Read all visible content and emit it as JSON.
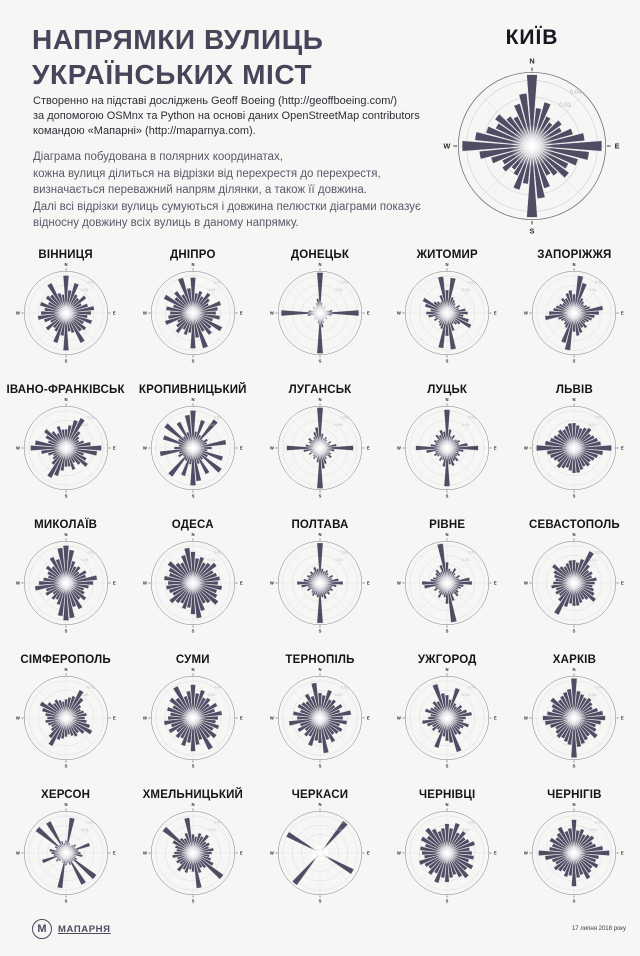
{
  "colors": {
    "background": "#f6f6f5",
    "petal": "#4e4d63",
    "heading": "#474559",
    "intro_text": "#2e2e38",
    "method_text": "#585869",
    "grid_ring": "#cfcfd4",
    "outer_ring": "#73737d",
    "tick_label": "#b8b8bd",
    "direction_label": "#26262e"
  },
  "header": {
    "title_line1": "НАПРЯМКИ ВУЛИЦЬ",
    "title_line2": "УКРАЇНСЬКИХ МІСТ",
    "intro_lines": [
      "Створенно на підставі досліджень Geoff Boeing (http://geoffboeing.com/)",
      "за допомогою OSMnx та Python на основі даних OpenStreetMap contributors",
      "командою «Мапарні» (http://maparnya.com)."
    ],
    "method_lines": [
      "Діаграма побудована в полярних координатах,",
      "кожна вулиця ділиться на відрізки від перехрестя до перехрестя,",
      "визначається переважний напрям ділянки, а також її довжина.",
      "Далі всі відрізки вулиць сумуються і довжина пелюстки діаграми показує",
      "відносну довжину всіх вулиць в даному напрямку."
    ]
  },
  "chart_data": {
    "type": "polar-rose",
    "bin_width_deg": 10,
    "bins_start": "N, clockwise",
    "direction_labels": [
      "N",
      "E",
      "S",
      "W"
    ],
    "values_unit": "relative street length, fraction of axis max",
    "featured": {
      "name": "КИЇВ",
      "r_ticks": [
        "0.04",
        "0.03"
      ],
      "values": [
        0.97,
        0.52,
        0.62,
        0.45,
        0.4,
        0.5,
        0.45,
        0.58,
        0.72,
        0.95,
        0.78,
        0.65,
        0.55,
        0.62,
        0.5,
        0.45,
        0.6,
        0.72,
        0.97,
        0.52,
        0.62,
        0.45,
        0.4,
        0.5,
        0.45,
        0.58,
        0.72,
        0.95,
        0.78,
        0.65,
        0.55,
        0.62,
        0.5,
        0.45,
        0.6,
        0.72
      ]
    },
    "cities": [
      {
        "name": "ВІННИЦЯ",
        "r_ticks": [
          "0.04",
          "0.03"
        ],
        "values": [
          0.9,
          0.55,
          0.75,
          0.5,
          0.45,
          0.6,
          0.42,
          0.55,
          0.68,
          0.6,
          0.52,
          0.65,
          0.48,
          0.6,
          0.55,
          0.8,
          0.5,
          0.45,
          0.9,
          0.55,
          0.75,
          0.5,
          0.45,
          0.6,
          0.42,
          0.55,
          0.68,
          0.6,
          0.52,
          0.65,
          0.48,
          0.6,
          0.55,
          0.8,
          0.5,
          0.45
        ]
      },
      {
        "name": "ДНІПРО",
        "r_ticks": [
          "0.04",
          "0.03"
        ],
        "values": [
          0.85,
          0.48,
          0.55,
          0.45,
          0.6,
          0.5,
          0.42,
          0.7,
          0.6,
          0.55,
          0.65,
          0.5,
          0.78,
          0.55,
          0.65,
          0.5,
          0.88,
          0.6,
          0.85,
          0.48,
          0.55,
          0.45,
          0.6,
          0.5,
          0.42,
          0.7,
          0.6,
          0.55,
          0.65,
          0.5,
          0.78,
          0.55,
          0.65,
          0.5,
          0.88,
          0.6
        ]
      },
      {
        "name": "ДОНЕЦЬК",
        "r_ticks": [
          "0.06",
          "0.04"
        ],
        "values": [
          0.97,
          0.25,
          0.18,
          0.15,
          0.2,
          0.15,
          0.12,
          0.18,
          0.3,
          0.93,
          0.28,
          0.18,
          0.15,
          0.22,
          0.15,
          0.18,
          0.25,
          0.35,
          0.97,
          0.25,
          0.18,
          0.15,
          0.2,
          0.15,
          0.12,
          0.18,
          0.3,
          0.93,
          0.28,
          0.18,
          0.15,
          0.22,
          0.15,
          0.18,
          0.25,
          0.35
        ]
      },
      {
        "name": "ЖИТОМИР",
        "r_ticks": [
          "0.05",
          "0.04"
        ],
        "values": [
          0.55,
          0.85,
          0.4,
          0.35,
          0.3,
          0.25,
          0.35,
          0.3,
          0.45,
          0.5,
          0.4,
          0.55,
          0.65,
          0.4,
          0.35,
          0.3,
          0.45,
          0.88,
          0.55,
          0.85,
          0.4,
          0.35,
          0.3,
          0.25,
          0.35,
          0.3,
          0.45,
          0.5,
          0.4,
          0.55,
          0.65,
          0.4,
          0.35,
          0.3,
          0.45,
          0.88
        ]
      },
      {
        "name": "ЗАПОРІЖЖЯ",
        "r_ticks": [
          "0.06",
          "0.04"
        ],
        "values": [
          0.45,
          0.9,
          0.75,
          0.4,
          0.35,
          0.3,
          0.35,
          0.4,
          0.7,
          0.6,
          0.5,
          0.45,
          0.4,
          0.35,
          0.45,
          0.4,
          0.5,
          0.55,
          0.45,
          0.9,
          0.75,
          0.4,
          0.35,
          0.3,
          0.35,
          0.4,
          0.7,
          0.6,
          0.5,
          0.45,
          0.4,
          0.35,
          0.45,
          0.4,
          0.5,
          0.55
        ]
      },
      {
        "name": "ІВАНО-ФРАНКІВСЬК",
        "r_ticks": [
          "0.05",
          "0.04"
        ],
        "values": [
          0.45,
          0.55,
          0.7,
          0.8,
          0.5,
          0.4,
          0.35,
          0.45,
          0.6,
          0.85,
          0.75,
          0.45,
          0.55,
          0.65,
          0.5,
          0.4,
          0.55,
          0.45,
          0.45,
          0.55,
          0.7,
          0.8,
          0.5,
          0.4,
          0.35,
          0.45,
          0.6,
          0.85,
          0.75,
          0.45,
          0.55,
          0.65,
          0.5,
          0.4,
          0.55,
          0.45
        ]
      },
      {
        "name": "КРОПИВНИЦЬКИЙ",
        "r_ticks": [
          "0.05",
          "0.04"
        ],
        "values": [
          0.9,
          0.4,
          0.7,
          0.35,
          0.85,
          0.3,
          0.4,
          0.35,
          0.8,
          0.45,
          0.35,
          0.75,
          0.4,
          0.85,
          0.35,
          0.7,
          0.4,
          0.8,
          0.9,
          0.4,
          0.7,
          0.35,
          0.85,
          0.3,
          0.4,
          0.35,
          0.8,
          0.45,
          0.35,
          0.75,
          0.4,
          0.85,
          0.35,
          0.7,
          0.4,
          0.8
        ]
      },
      {
        "name": "ЛУГАНСЬК",
        "r_ticks": [
          "0.06",
          "0.04"
        ],
        "values": [
          0.97,
          0.35,
          0.25,
          0.3,
          0.25,
          0.2,
          0.3,
          0.25,
          0.4,
          0.8,
          0.35,
          0.25,
          0.3,
          0.35,
          0.25,
          0.3,
          0.4,
          0.5,
          0.97,
          0.35,
          0.25,
          0.3,
          0.25,
          0.2,
          0.3,
          0.25,
          0.4,
          0.8,
          0.35,
          0.25,
          0.3,
          0.35,
          0.25,
          0.3,
          0.4,
          0.5
        ]
      },
      {
        "name": "ЛУЦЬК",
        "r_ticks": [
          "0.05",
          "0.04"
        ],
        "values": [
          0.92,
          0.45,
          0.3,
          0.35,
          0.25,
          0.3,
          0.35,
          0.3,
          0.5,
          0.75,
          0.4,
          0.3,
          0.35,
          0.3,
          0.4,
          0.35,
          0.45,
          0.4,
          0.92,
          0.45,
          0.3,
          0.35,
          0.25,
          0.3,
          0.35,
          0.3,
          0.5,
          0.75,
          0.4,
          0.3,
          0.35,
          0.3,
          0.4,
          0.35,
          0.45,
          0.4
        ]
      },
      {
        "name": "ЛЬВІВ",
        "r_ticks": [
          "0.03",
          "0.02"
        ],
        "values": [
          0.6,
          0.55,
          0.5,
          0.55,
          0.6,
          0.5,
          0.55,
          0.6,
          0.65,
          0.9,
          0.7,
          0.6,
          0.55,
          0.5,
          0.55,
          0.5,
          0.55,
          0.6,
          0.6,
          0.55,
          0.5,
          0.55,
          0.6,
          0.5,
          0.55,
          0.6,
          0.65,
          0.9,
          0.7,
          0.6,
          0.55,
          0.5,
          0.55,
          0.5,
          0.55,
          0.6
        ]
      },
      {
        "name": "МИКОЛАЇВ",
        "r_ticks": [
          "0.04",
          "0.03"
        ],
        "values": [
          0.9,
          0.8,
          0.55,
          0.45,
          0.5,
          0.4,
          0.55,
          0.5,
          0.75,
          0.65,
          0.55,
          0.45,
          0.5,
          0.6,
          0.5,
          0.7,
          0.6,
          0.85,
          0.9,
          0.8,
          0.55,
          0.45,
          0.5,
          0.4,
          0.55,
          0.5,
          0.75,
          0.65,
          0.55,
          0.45,
          0.5,
          0.6,
          0.5,
          0.7,
          0.6,
          0.85
        ]
      },
      {
        "name": "ОДЕСА",
        "r_ticks": [
          "0.03",
          "0.02"
        ],
        "values": [
          0.75,
          0.6,
          0.65,
          0.55,
          0.6,
          0.7,
          0.55,
          0.6,
          0.65,
          0.6,
          0.7,
          0.6,
          0.65,
          0.75,
          0.6,
          0.55,
          0.7,
          0.85,
          0.75,
          0.6,
          0.65,
          0.55,
          0.6,
          0.7,
          0.55,
          0.6,
          0.65,
          0.6,
          0.7,
          0.6,
          0.65,
          0.75,
          0.6,
          0.55,
          0.7,
          0.85
        ]
      },
      {
        "name": "ПОЛТАВА",
        "r_ticks": [
          "0.06",
          "0.04"
        ],
        "values": [
          0.96,
          0.35,
          0.3,
          0.35,
          0.3,
          0.25,
          0.35,
          0.3,
          0.45,
          0.55,
          0.4,
          0.3,
          0.35,
          0.3,
          0.35,
          0.3,
          0.4,
          0.35,
          0.96,
          0.35,
          0.3,
          0.35,
          0.3,
          0.25,
          0.35,
          0.3,
          0.45,
          0.55,
          0.4,
          0.3,
          0.35,
          0.3,
          0.35,
          0.3,
          0.4,
          0.35
        ]
      },
      {
        "name": "РІВНЕ",
        "r_ticks": [
          "0.07",
          "0.05"
        ],
        "values": [
          0.5,
          0.35,
          0.3,
          0.4,
          0.3,
          0.25,
          0.35,
          0.3,
          0.55,
          0.6,
          0.4,
          0.35,
          0.3,
          0.35,
          0.4,
          0.3,
          0.45,
          0.95,
          0.5,
          0.35,
          0.3,
          0.4,
          0.3,
          0.25,
          0.35,
          0.3,
          0.55,
          0.6,
          0.4,
          0.35,
          0.3,
          0.35,
          0.4,
          0.3,
          0.45,
          0.95
        ]
      },
      {
        "name": "СЕВАСТОПОЛЬ",
        "r_ticks": [
          "0.03",
          "0.02"
        ],
        "values": [
          0.55,
          0.5,
          0.6,
          0.85,
          0.55,
          0.45,
          0.5,
          0.45,
          0.55,
          0.5,
          0.45,
          0.5,
          0.55,
          0.65,
          0.5,
          0.45,
          0.5,
          0.55,
          0.55,
          0.5,
          0.6,
          0.85,
          0.55,
          0.45,
          0.5,
          0.45,
          0.55,
          0.5,
          0.45,
          0.5,
          0.55,
          0.65,
          0.5,
          0.45,
          0.5,
          0.55
        ]
      },
      {
        "name": "СІМФЕРОПОЛЬ",
        "r_ticks": [
          "0.03",
          "0.02"
        ],
        "values": [
          0.45,
          0.5,
          0.55,
          0.75,
          0.6,
          0.45,
          0.4,
          0.45,
          0.5,
          0.45,
          0.5,
          0.6,
          0.7,
          0.55,
          0.45,
          0.5,
          0.45,
          0.4,
          0.45,
          0.5,
          0.55,
          0.75,
          0.6,
          0.45,
          0.4,
          0.45,
          0.5,
          0.45,
          0.5,
          0.6,
          0.7,
          0.55,
          0.45,
          0.5,
          0.45,
          0.4
        ]
      },
      {
        "name": "СУМИ",
        "r_ticks": [
          "0.04",
          "0.03"
        ],
        "values": [
          0.8,
          0.6,
          0.7,
          0.55,
          0.6,
          0.5,
          0.65,
          0.55,
          0.7,
          0.6,
          0.55,
          0.65,
          0.55,
          0.7,
          0.6,
          0.85,
          0.55,
          0.65,
          0.8,
          0.6,
          0.7,
          0.55,
          0.6,
          0.5,
          0.65,
          0.55,
          0.7,
          0.6,
          0.55,
          0.65,
          0.55,
          0.7,
          0.6,
          0.85,
          0.55,
          0.65
        ]
      },
      {
        "name": "ТЕРНОПІЛЬ",
        "r_ticks": [
          "0.03",
          "0.02"
        ],
        "values": [
          0.6,
          0.55,
          0.7,
          0.5,
          0.55,
          0.45,
          0.6,
          0.5,
          0.75,
          0.55,
          0.65,
          0.5,
          0.6,
          0.55,
          0.5,
          0.65,
          0.55,
          0.85,
          0.6,
          0.55,
          0.7,
          0.5,
          0.55,
          0.45,
          0.6,
          0.5,
          0.75,
          0.55,
          0.65,
          0.5,
          0.6,
          0.55,
          0.5,
          0.65,
          0.55,
          0.85
        ]
      },
      {
        "name": "УЖГОРОД",
        "r_ticks": [
          "0.04",
          "0.03"
        ],
        "values": [
          0.55,
          0.45,
          0.75,
          0.4,
          0.35,
          0.45,
          0.4,
          0.5,
          0.6,
          0.45,
          0.4,
          0.55,
          0.45,
          0.4,
          0.5,
          0.45,
          0.85,
          0.6,
          0.55,
          0.45,
          0.75,
          0.4,
          0.35,
          0.45,
          0.4,
          0.5,
          0.6,
          0.45,
          0.4,
          0.55,
          0.45,
          0.4,
          0.5,
          0.45,
          0.85,
          0.6
        ]
      },
      {
        "name": "ХАРКІВ",
        "r_ticks": [
          "0.04",
          "0.03"
        ],
        "values": [
          0.95,
          0.65,
          0.6,
          0.55,
          0.6,
          0.55,
          0.5,
          0.6,
          0.7,
          0.75,
          0.65,
          0.55,
          0.6,
          0.7,
          0.55,
          0.6,
          0.65,
          0.7,
          0.95,
          0.65,
          0.6,
          0.55,
          0.6,
          0.55,
          0.5,
          0.6,
          0.7,
          0.75,
          0.65,
          0.55,
          0.6,
          0.7,
          0.55,
          0.6,
          0.65,
          0.7
        ]
      },
      {
        "name": "ХЕРСОН",
        "r_ticks": [
          "0.08",
          "0.06"
        ],
        "values": [
          0.3,
          0.85,
          0.25,
          0.2,
          0.25,
          0.3,
          0.25,
          0.6,
          0.3,
          0.35,
          0.4,
          0.25,
          0.3,
          0.9,
          0.25,
          0.85,
          0.3,
          0.25,
          0.3,
          0.85,
          0.25,
          0.2,
          0.25,
          0.3,
          0.25,
          0.6,
          0.3,
          0.35,
          0.4,
          0.25,
          0.3,
          0.9,
          0.25,
          0.85,
          0.3,
          0.25
        ]
      },
      {
        "name": "ХМЕЛЬНИЦЬКИЙ",
        "r_ticks": [
          "0.04",
          "0.03"
        ],
        "values": [
          0.45,
          0.4,
          0.5,
          0.45,
          0.55,
          0.4,
          0.45,
          0.4,
          0.5,
          0.45,
          0.4,
          0.45,
          0.55,
          0.9,
          0.45,
          0.4,
          0.5,
          0.85,
          0.45,
          0.4,
          0.5,
          0.45,
          0.55,
          0.4,
          0.45,
          0.4,
          0.5,
          0.45,
          0.4,
          0.45,
          0.55,
          0.9,
          0.45,
          0.4,
          0.5,
          0.85
        ]
      },
      {
        "name": "ЧЕРКАСИ",
        "r_ticks": [
          "0.14",
          "0.11"
        ],
        "values": [
          0.08,
          0.1,
          0.08,
          0.15,
          0.95,
          0.12,
          0.08,
          0.1,
          0.08,
          0.1,
          0.08,
          0.12,
          0.9,
          0.15,
          0.08,
          0.1,
          0.08,
          0.1,
          0.08,
          0.1,
          0.08,
          0.15,
          0.95,
          0.12,
          0.08,
          0.1,
          0.08,
          0.1,
          0.08,
          0.12,
          0.9,
          0.15,
          0.08,
          0.1,
          0.08,
          0.1
        ]
      },
      {
        "name": "ЧЕРНІВЦІ",
        "r_ticks": [
          "0.03",
          "0.02"
        ],
        "values": [
          0.7,
          0.6,
          0.75,
          0.55,
          0.65,
          0.55,
          0.6,
          0.7,
          0.55,
          0.6,
          0.65,
          0.55,
          0.7,
          0.6,
          0.75,
          0.65,
          0.55,
          0.6,
          0.7,
          0.6,
          0.75,
          0.55,
          0.65,
          0.55,
          0.6,
          0.7,
          0.55,
          0.6,
          0.65,
          0.55,
          0.7,
          0.6,
          0.75,
          0.65,
          0.55,
          0.6
        ]
      },
      {
        "name": "ЧЕРНІГІВ",
        "r_ticks": [
          "0.04",
          "0.03"
        ],
        "values": [
          0.8,
          0.55,
          0.6,
          0.5,
          0.55,
          0.6,
          0.5,
          0.55,
          0.7,
          0.85,
          0.6,
          0.55,
          0.65,
          0.55,
          0.6,
          0.7,
          0.55,
          0.6,
          0.8,
          0.55,
          0.6,
          0.5,
          0.55,
          0.6,
          0.5,
          0.55,
          0.7,
          0.85,
          0.6,
          0.55,
          0.65,
          0.55,
          0.6,
          0.7,
          0.55,
          0.6
        ]
      }
    ]
  },
  "footer": {
    "brand_initial": "М",
    "brand_name": "МАПАРНЯ",
    "date": "17 липня 2018 року"
  }
}
